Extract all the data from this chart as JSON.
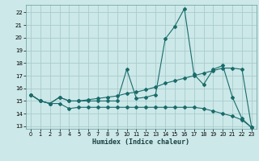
{
  "title": "",
  "xlabel": "Humidex (Indice chaleur)",
  "bg_color": "#cce8e8",
  "grid_color": "#aacccc",
  "line_color": "#1a6b6b",
  "xlim": [
    -0.5,
    23.5
  ],
  "ylim": [
    12.8,
    22.6
  ],
  "yticks": [
    13,
    14,
    15,
    16,
    17,
    18,
    19,
    20,
    21,
    22
  ],
  "xticks": [
    0,
    1,
    2,
    3,
    4,
    5,
    6,
    7,
    8,
    9,
    10,
    11,
    12,
    13,
    14,
    15,
    16,
    17,
    18,
    19,
    20,
    21,
    22,
    23
  ],
  "line1_x": [
    0,
    1,
    2,
    3,
    4,
    5,
    6,
    7,
    8,
    9,
    10,
    11,
    12,
    13,
    14,
    15,
    16,
    17,
    18,
    19,
    20,
    21,
    22,
    23
  ],
  "line1_y": [
    15.5,
    15.0,
    14.8,
    15.3,
    15.0,
    15.0,
    15.0,
    15.0,
    15.0,
    15.0,
    17.5,
    15.2,
    15.3,
    15.5,
    19.9,
    20.9,
    22.3,
    17.1,
    16.3,
    17.5,
    17.8,
    15.3,
    13.6,
    12.9
  ],
  "line2_x": [
    0,
    1,
    2,
    3,
    4,
    5,
    6,
    7,
    8,
    9,
    10,
    11,
    12,
    13,
    14,
    15,
    16,
    17,
    18,
    19,
    20,
    21,
    22,
    23
  ],
  "line2_y": [
    15.5,
    15.0,
    14.8,
    14.8,
    14.4,
    14.5,
    14.5,
    14.5,
    14.5,
    14.5,
    14.5,
    14.5,
    14.5,
    14.5,
    14.5,
    14.5,
    14.5,
    14.5,
    14.4,
    14.2,
    14.0,
    13.8,
    13.5,
    12.9
  ],
  "line3_x": [
    0,
    1,
    2,
    3,
    4,
    5,
    6,
    7,
    8,
    9,
    10,
    11,
    12,
    13,
    14,
    15,
    16,
    17,
    18,
    19,
    20,
    21,
    22,
    23
  ],
  "line3_y": [
    15.5,
    15.0,
    14.8,
    15.3,
    15.0,
    15.0,
    15.1,
    15.2,
    15.3,
    15.4,
    15.6,
    15.7,
    15.9,
    16.1,
    16.4,
    16.6,
    16.8,
    17.0,
    17.2,
    17.4,
    17.6,
    17.6,
    17.5,
    12.9
  ]
}
